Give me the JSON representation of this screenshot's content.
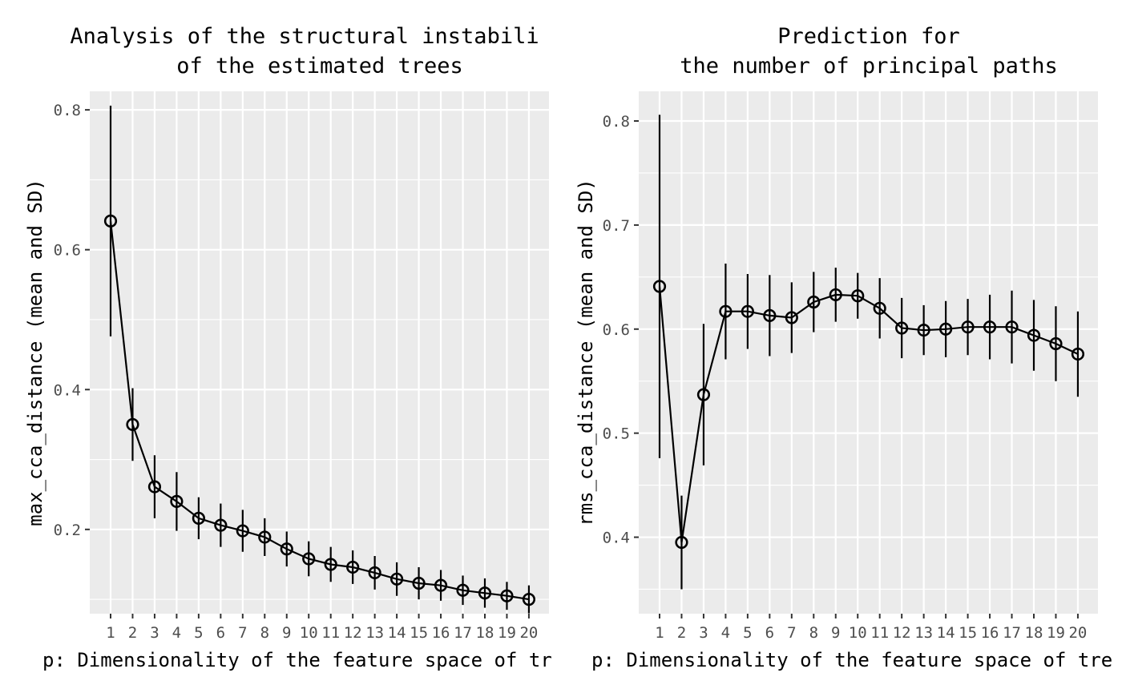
{
  "chart_data": [
    {
      "type": "line",
      "title_lines": [
        "Analysis of the structural instabili",
        "of the estimated trees"
      ],
      "xlabel": "p: Dimensionality of the feature space of tr",
      "ylabel": "max_cca_distance (mean and SD)",
      "categories": [
        "1",
        "2",
        "3",
        "4",
        "5",
        "6",
        "7",
        "8",
        "9",
        "10",
        "11",
        "12",
        "13",
        "14",
        "15",
        "16",
        "17",
        "18",
        "19",
        "20"
      ],
      "series": [
        {
          "mean": [
            0.641,
            0.35,
            0.261,
            0.24,
            0.216,
            0.206,
            0.198,
            0.189,
            0.172,
            0.158,
            0.15,
            0.146,
            0.138,
            0.129,
            0.123,
            0.12,
            0.113,
            0.109,
            0.105,
            0.1
          ],
          "sd": [
            0.165,
            0.052,
            0.045,
            0.042,
            0.03,
            0.031,
            0.03,
            0.027,
            0.025,
            0.025,
            0.025,
            0.024,
            0.024,
            0.024,
            0.023,
            0.022,
            0.021,
            0.021,
            0.02,
            0.02
          ]
        }
      ],
      "y_ticks": [
        "0.2",
        "0.4",
        "0.6",
        "0.8"
      ],
      "y_tick_values": [
        0.2,
        0.4,
        0.6,
        0.8
      ],
      "ylim": [
        0.0795,
        0.8265
      ],
      "grid": true,
      "panel_background": "#ebebeb",
      "grid_color": "#ffffff",
      "line_color": "#000000"
    },
    {
      "type": "line",
      "title_lines": [
        "Prediction for",
        "the number of principal paths"
      ],
      "xlabel": "p: Dimensionality of the feature space of tre",
      "ylabel": "rms_cca_distance (mean and SD)",
      "categories": [
        "1",
        "2",
        "3",
        "4",
        "5",
        "6",
        "7",
        "8",
        "9",
        "10",
        "11",
        "12",
        "13",
        "14",
        "15",
        "16",
        "17",
        "18",
        "19",
        "20"
      ],
      "series": [
        {
          "mean": [
            0.641,
            0.395,
            0.537,
            0.617,
            0.617,
            0.613,
            0.611,
            0.626,
            0.633,
            0.632,
            0.62,
            0.601,
            0.599,
            0.6,
            0.602,
            0.602,
            0.602,
            0.594,
            0.586,
            0.576
          ],
          "sd": [
            0.165,
            0.045,
            0.068,
            0.046,
            0.036,
            0.039,
            0.034,
            0.029,
            0.026,
            0.022,
            0.029,
            0.029,
            0.024,
            0.027,
            0.027,
            0.031,
            0.035,
            0.034,
            0.036,
            0.041
          ]
        }
      ],
      "y_ticks": [
        "0.4",
        "0.5",
        "0.6",
        "0.7",
        "0.8"
      ],
      "y_tick_values": [
        0.4,
        0.5,
        0.6,
        0.7,
        0.8
      ],
      "ylim": [
        0.3265,
        0.8285
      ],
      "grid": true,
      "panel_background": "#ebebeb",
      "grid_color": "#ffffff",
      "line_color": "#000000"
    }
  ]
}
